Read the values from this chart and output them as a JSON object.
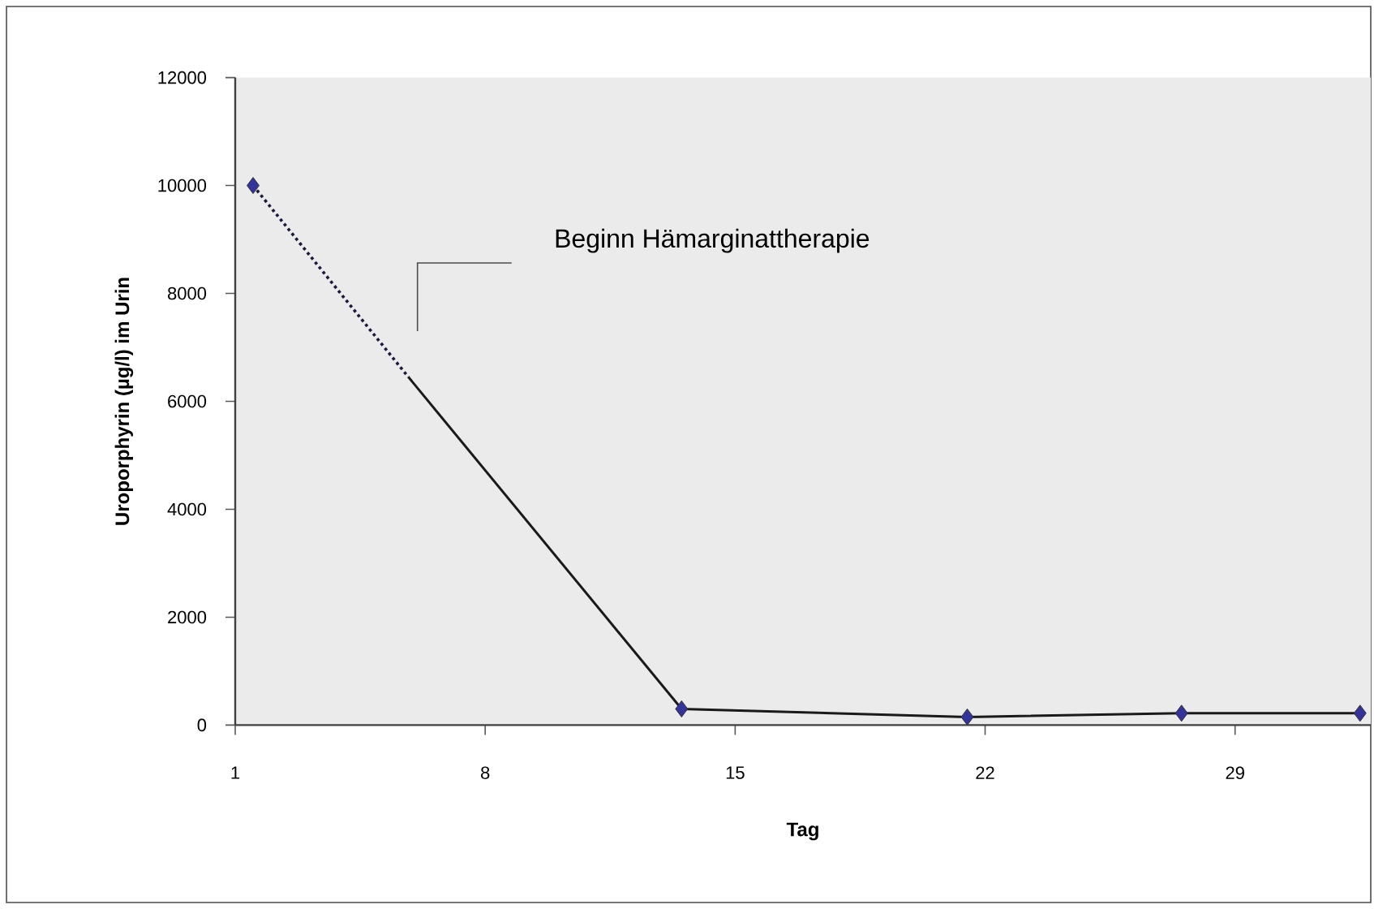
{
  "chart_data": {
    "type": "line",
    "xlabel": "Tag",
    "ylabel": "Uroporphyrin (µg/l) im Urin",
    "xlim": [
      1,
      32.8
    ],
    "xticks": [
      1,
      8,
      15,
      22,
      29
    ],
    "ylim": [
      0,
      12000
    ],
    "yticks": [
      0,
      2000,
      4000,
      6000,
      8000,
      10000,
      12000
    ],
    "series": [
      {
        "line_style": "dotted",
        "marker": "none",
        "color": "#1a1a40",
        "x": [
          1.5,
          5.85
        ],
        "values": [
          10000,
          6450
        ]
      },
      {
        "line_style": "solid",
        "marker": "none",
        "color": "#1a1a1a",
        "x": [
          5.85,
          13.5,
          21.5,
          27.5,
          32.5
        ],
        "values": [
          6450,
          300,
          150,
          220,
          220
        ]
      },
      {
        "type": "scatter",
        "marker": "diamond",
        "color": "#33339a",
        "x": [
          1.5,
          13.5,
          21.5,
          27.5,
          32.5
        ],
        "values": [
          10000,
          300,
          150,
          220,
          220
        ]
      }
    ],
    "annotations": [
      "Beginn Hämarginattherapie"
    ]
  }
}
